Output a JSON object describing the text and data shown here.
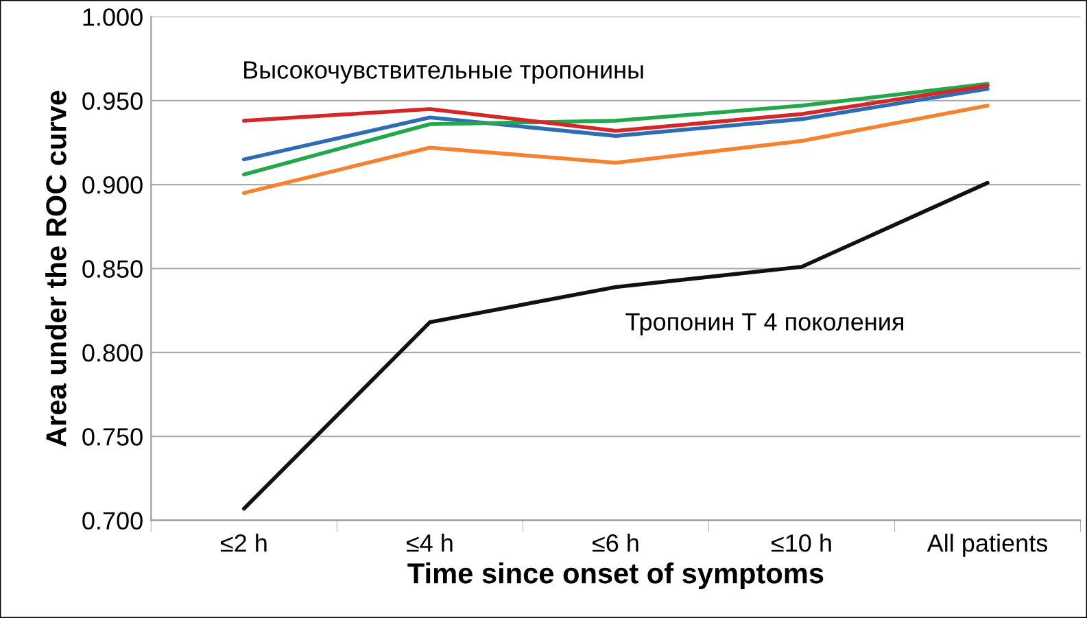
{
  "chart_data": {
    "type": "line",
    "xlabel": "Time since onset of symptoms",
    "ylabel": "Area under the ROC curve",
    "categories": [
      "≤2 h",
      "≤4 h",
      "≤6 h",
      "≤10 h",
      "All patients"
    ],
    "series": [
      {
        "color": "#f58231",
        "values": [
          0.895,
          0.922,
          0.913,
          0.926,
          0.947
        ]
      },
      {
        "color": "#2e6db4",
        "values": [
          0.915,
          0.94,
          0.929,
          0.939,
          0.957
        ]
      },
      {
        "color": "#22a84a",
        "values": [
          0.906,
          0.936,
          0.938,
          0.947,
          0.96
        ]
      },
      {
        "color": "#d62728",
        "values": [
          0.938,
          0.945,
          0.932,
          0.942,
          0.959
        ]
      },
      {
        "color": "#111111",
        "values": [
          0.707,
          0.818,
          0.839,
          0.851,
          0.901
        ]
      }
    ],
    "annotations": [
      "Высокочувствительные тропонины",
      "Тропонин Т 4 поколения"
    ],
    "ylim": [
      0.7,
      1.0
    ],
    "yticks": [
      {
        "value": 0.7,
        "label": "0.700"
      },
      {
        "value": 0.75,
        "label": "0.750"
      },
      {
        "value": 0.8,
        "label": "0.800"
      },
      {
        "value": 0.85,
        "label": "0.850"
      },
      {
        "value": 0.9,
        "label": "0.900"
      },
      {
        "value": 0.95,
        "label": "0.950"
      },
      {
        "value": 1.0,
        "label": "1.000"
      }
    ],
    "grid": "y",
    "legend": false,
    "marker": "none",
    "line_style": "solid"
  }
}
